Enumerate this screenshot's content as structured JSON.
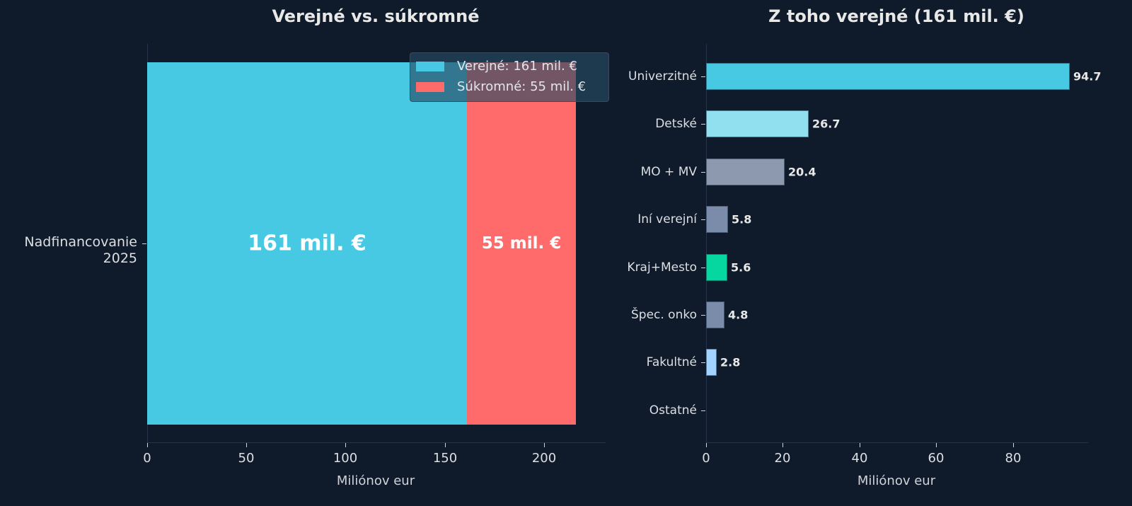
{
  "chart_data": [
    {
      "type": "bar",
      "orientation": "horizontal-stacked",
      "title": "Verejné vs. súkromné",
      "categories": [
        "Nadfinancovanie 2025"
      ],
      "category_label_lines": [
        "Nadfinancovanie",
        "2025"
      ],
      "series": [
        {
          "name": "Verejné: 161 mil. €",
          "values": [
            161
          ],
          "color": "#48c9e3",
          "bar_label": "161 mil. €"
        },
        {
          "name": "Súkromné: 55 mil. €",
          "values": [
            55
          ],
          "color": "#ff6b6b",
          "bar_label": "55 mil. €"
        }
      ],
      "xlabel": "Miliónov eur",
      "ylabel": "",
      "xlim": [
        0,
        230
      ],
      "xticks": [
        0,
        50,
        100,
        150,
        200
      ],
      "grid": false,
      "legend_position": "upper right"
    },
    {
      "type": "bar",
      "orientation": "horizontal",
      "title": "Z toho verejné (161 mil. €)",
      "categories": [
        "Univerzitné",
        "Detské",
        "MO + MV",
        "Iní verejní",
        "Kraj+Mesto",
        "Špec. onko",
        "Fakultné",
        "Ostatné"
      ],
      "values": [
        94.7,
        26.7,
        20.4,
        5.8,
        5.6,
        4.8,
        2.8,
        0
      ],
      "value_labels": [
        "94.7",
        "26.7",
        "20.4",
        "5.8",
        "5.6",
        "4.8",
        "2.8",
        ""
      ],
      "colors": [
        "#48c9e3",
        "#90e0ef",
        "#8d99ae",
        "#7b8cab",
        "#06d6a0",
        "#7b8cab",
        "#a2d2ff",
        "#7b8cab"
      ],
      "xlabel": "Miliónov eur",
      "ylabel": "",
      "xlim": [
        0,
        99.5
      ],
      "xticks": [
        0,
        20,
        40,
        60,
        80
      ],
      "grid": false
    }
  ],
  "left": {
    "title": "Verejné vs. súkromné",
    "category_line1": "Nadfinancovanie",
    "category_line2": "2025",
    "bar_label_public": "161 mil. €",
    "bar_label_private": "55 mil. €",
    "legend": [
      "Verejné: 161 mil. €",
      "Súkromné: 55 mil. €"
    ],
    "xticks": [
      "0",
      "50",
      "100",
      "150",
      "200"
    ],
    "xlabel": "Miliónov eur"
  },
  "right": {
    "title": "Z toho verejné (161 mil. €)",
    "xticks": [
      "0",
      "20",
      "40",
      "60",
      "80"
    ],
    "xlabel": "Miliónov eur"
  }
}
